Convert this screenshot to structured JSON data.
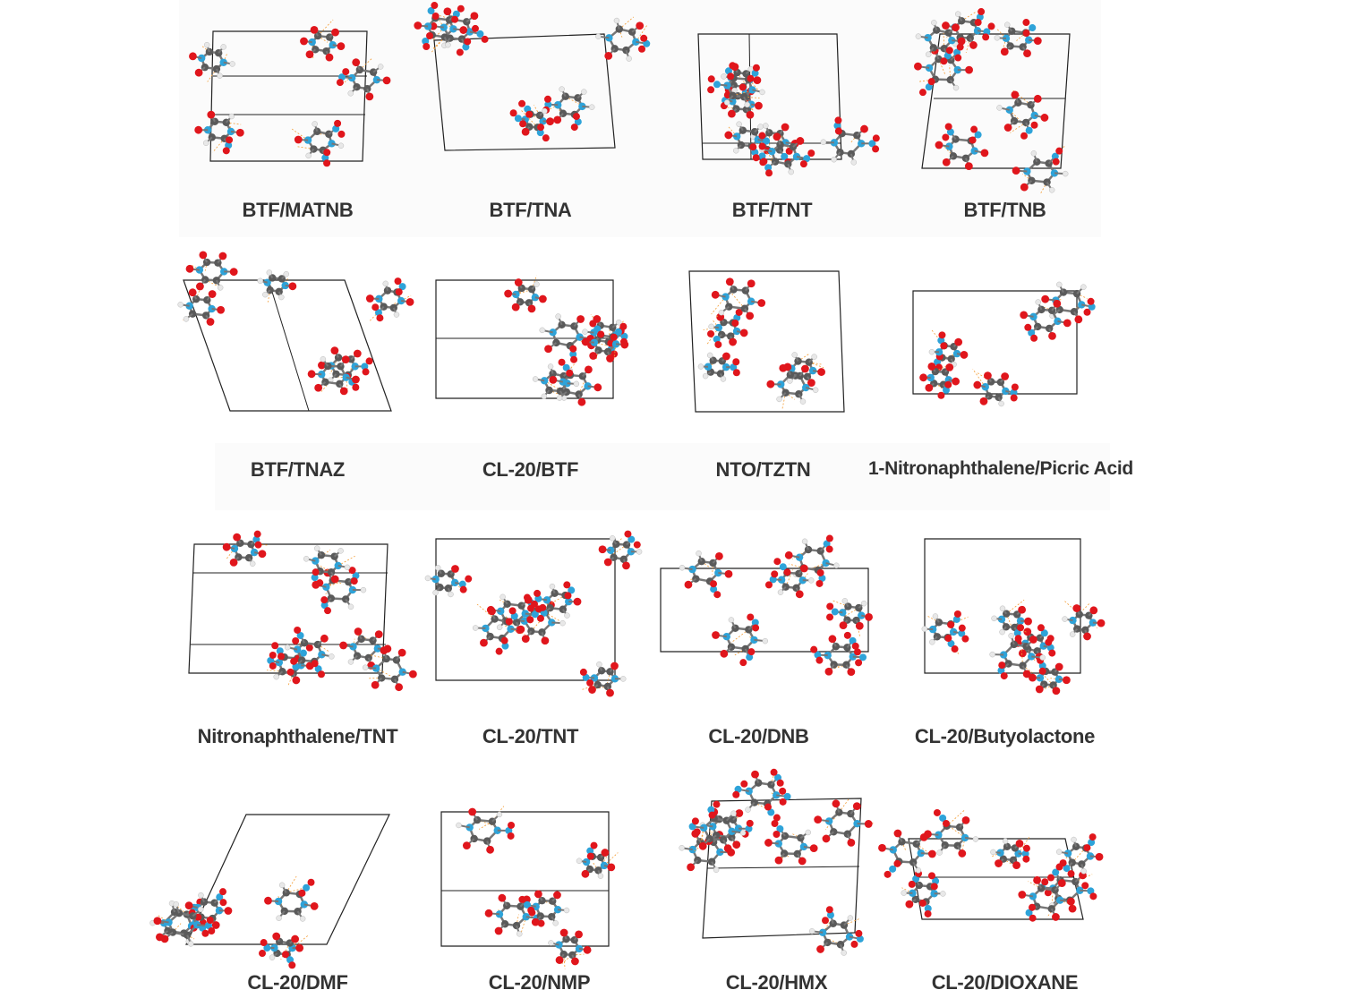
{
  "figure": {
    "panels": [
      {
        "label": "BTF/MATNB"
      },
      {
        "label": "BTF/TNA"
      },
      {
        "label": "BTF/TNT"
      },
      {
        "label": "BTF/TNB"
      },
      {
        "label": "BTF/TNAZ"
      },
      {
        "label": "CL-20/BTF"
      },
      {
        "label": "NTO/TZTN"
      },
      {
        "label": "1-Nitronaphthalene/Picric Acid"
      },
      {
        "label": "Nitronaphthalene/TNT"
      },
      {
        "label": "CL-20/TNT"
      },
      {
        "label": "CL-20/DNB"
      },
      {
        "label": "CL-20/Butyolactone"
      },
      {
        "label": "CL-20/DMF"
      },
      {
        "label": "CL-20/NMP"
      },
      {
        "label": "CL-20/HMX"
      },
      {
        "label": "CL-20/DIOXANE"
      }
    ],
    "colors": {
      "oxygen": "#e0161c",
      "nitrogen": "#2ea3d9",
      "carbon": "#5a5a5a",
      "hydrogen": "#e8e8e8",
      "cell": "#222222",
      "hbond": "#f39c34"
    }
  }
}
